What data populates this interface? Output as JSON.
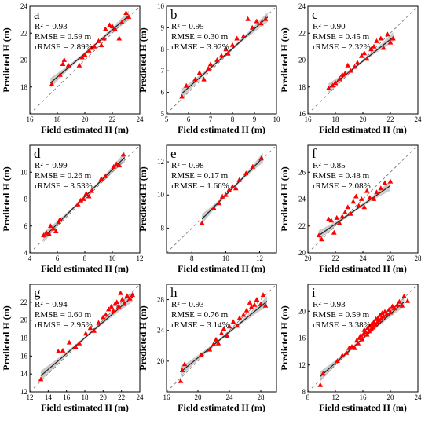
{
  "axis_labels": {
    "x": "Field estimated H (m)",
    "y": "Predicted H (m)"
  },
  "colors": {
    "points": "#ff0000",
    "band": "#b9b9b9",
    "fit": "#222222",
    "one_to_one": "#7a7a7a"
  },
  "chart_data": [
    {
      "type": "scatter",
      "panel": "a",
      "stats": {
        "r2": "R² = 0.93",
        "rmse": "RMSE = 0.59 m",
        "rrmse": "rRMSE = 2.89%"
      },
      "xlim": [
        16,
        24
      ],
      "ylim": [
        16,
        24
      ],
      "xticks": [
        "16",
        "18",
        "20",
        "22",
        "24"
      ],
      "yticks": [
        "18",
        "20",
        "22",
        "24"
      ],
      "xtick_values": [
        16,
        18,
        20,
        22,
        24
      ],
      "ytick_values": [
        18,
        20,
        22,
        24
      ],
      "fit": {
        "x": [
          17.5,
          23.2
        ],
        "y": [
          18.3,
          23.3
        ]
      },
      "points": [
        [
          17.6,
          18.2
        ],
        [
          18.2,
          18.9
        ],
        [
          18.4,
          19.7
        ],
        [
          18.5,
          20.0
        ],
        [
          18.8,
          19.6
        ],
        [
          19.6,
          19.6
        ],
        [
          19.8,
          20.2
        ],
        [
          20.0,
          20.4
        ],
        [
          20.3,
          20.7
        ],
        [
          20.5,
          20.9
        ],
        [
          20.7,
          21.0
        ],
        [
          21.0,
          21.4
        ],
        [
          21.2,
          21.1
        ],
        [
          21.4,
          21.6
        ],
        [
          21.5,
          22.3
        ],
        [
          21.8,
          22.6
        ],
        [
          22.0,
          22.5
        ],
        [
          22.2,
          22.3
        ],
        [
          22.5,
          21.6
        ],
        [
          22.7,
          22.8
        ],
        [
          23.0,
          23.5
        ],
        [
          23.2,
          23.2
        ]
      ]
    },
    {
      "type": "scatter",
      "panel": "b",
      "stats": {
        "r2": "R² = 0.95",
        "rmse": "RMSE = 0.30 m",
        "rrmse": "rRMSE = 3.92%"
      },
      "xlim": [
        5,
        10
      ],
      "ylim": [
        5,
        10
      ],
      "xticks": [
        "5",
        "6",
        "7",
        "8",
        "9",
        "10"
      ],
      "yticks": [
        "5",
        "6",
        "7",
        "8",
        "9",
        "10"
      ],
      "xtick_values": [
        5,
        6,
        7,
        8,
        9,
        10
      ],
      "ytick_values": [
        5,
        6,
        7,
        8,
        9,
        10
      ],
      "fit": {
        "x": [
          5.7,
          9.6
        ],
        "y": [
          5.95,
          9.5
        ]
      },
      "points": [
        [
          5.7,
          5.8
        ],
        [
          5.9,
          6.3
        ],
        [
          6.3,
          6.6
        ],
        [
          6.5,
          6.9
        ],
        [
          6.7,
          6.6
        ],
        [
          6.9,
          7.1
        ],
        [
          7.0,
          7.3
        ],
        [
          7.3,
          7.5
        ],
        [
          7.5,
          7.7
        ],
        [
          7.7,
          8.0
        ],
        [
          7.8,
          7.8
        ],
        [
          8.0,
          8.2
        ],
        [
          8.2,
          8.5
        ],
        [
          8.5,
          8.6
        ],
        [
          8.7,
          9.4
        ],
        [
          8.9,
          9.0
        ],
        [
          9.1,
          9.3
        ],
        [
          9.3,
          9.2
        ],
        [
          9.5,
          9.4
        ]
      ]
    },
    {
      "type": "scatter",
      "panel": "c",
      "stats": {
        "r2": "R² = 0.90",
        "rmse": "RMSE = 0.45 m",
        "rrmse": "rRMSE = 2.32%"
      },
      "xlim": [
        16,
        24
      ],
      "ylim": [
        16,
        24
      ],
      "xticks": [
        "16",
        "18",
        "20",
        "22",
        "24"
      ],
      "yticks": [
        "16",
        "18",
        "20",
        "22",
        "24"
      ],
      "xtick_values": [
        16,
        18,
        20,
        22,
        24
      ],
      "ytick_values": [
        16,
        18,
        20,
        22,
        24
      ],
      "fit": {
        "x": [
          17.5,
          22.2
        ],
        "y": [
          17.9,
          21.7
        ]
      },
      "points": [
        [
          17.5,
          17.9
        ],
        [
          17.8,
          18.1
        ],
        [
          18.0,
          18.3
        ],
        [
          18.3,
          18.6
        ],
        [
          18.5,
          18.9
        ],
        [
          18.7,
          19.0
        ],
        [
          18.9,
          19.6
        ],
        [
          19.1,
          19.2
        ],
        [
          19.4,
          19.5
        ],
        [
          19.6,
          19.8
        ],
        [
          19.9,
          20.3
        ],
        [
          20.1,
          20.5
        ],
        [
          20.3,
          20.1
        ],
        [
          20.6,
          20.8
        ],
        [
          20.8,
          21.0
        ],
        [
          21.0,
          21.4
        ],
        [
          21.3,
          21.6
        ],
        [
          21.5,
          20.9
        ],
        [
          21.8,
          21.9
        ],
        [
          22.0,
          21.3
        ],
        [
          22.2,
          21.6
        ]
      ]
    },
    {
      "type": "scatter",
      "panel": "d",
      "stats": {
        "r2": "R² = 0.99",
        "rmse": "RMSE = 0.26 m",
        "rrmse": "rRMSE = 3.53%"
      },
      "xlim": [
        4,
        12
      ],
      "ylim": [
        4,
        12
      ],
      "xticks": [
        "4",
        "6",
        "8",
        "10",
        "12"
      ],
      "yticks": [
        "4",
        "6",
        "8",
        "10"
      ],
      "xtick_values": [
        4,
        6,
        8,
        10,
        12
      ],
      "ytick_values": [
        4,
        6,
        8,
        10
      ],
      "fit": {
        "x": [
          5.0,
          10.9
        ],
        "y": [
          5.15,
          11.1
        ]
      },
      "points": [
        [
          5.0,
          5.3
        ],
        [
          5.2,
          5.5
        ],
        [
          5.4,
          5.4
        ],
        [
          5.5,
          6.0
        ],
        [
          5.7,
          5.8
        ],
        [
          5.9,
          5.6
        ],
        [
          6.1,
          6.3
        ],
        [
          6.2,
          6.5
        ],
        [
          7.5,
          7.6
        ],
        [
          7.7,
          7.9
        ],
        [
          7.9,
          8.0
        ],
        [
          8.1,
          8.4
        ],
        [
          8.3,
          8.2
        ],
        [
          8.5,
          8.6
        ],
        [
          9.2,
          9.5
        ],
        [
          9.5,
          9.7
        ],
        [
          10.1,
          10.4
        ],
        [
          10.3,
          10.6
        ],
        [
          10.5,
          10.5
        ],
        [
          10.8,
          11.3
        ]
      ]
    },
    {
      "type": "scatter",
      "panel": "e",
      "stats": {
        "r2": "R² = 0.98",
        "rmse": "RMSE = 0.17 m",
        "rrmse": "rRMSE = 1.66%"
      },
      "xlim": [
        6.5,
        13
      ],
      "ylim": [
        6.5,
        13
      ],
      "xticks": [
        "8",
        "10",
        "12"
      ],
      "yticks": [
        "8",
        "10",
        "12"
      ],
      "xtick_values": [
        8,
        10,
        12
      ],
      "ytick_values": [
        8,
        10,
        12
      ],
      "fit": {
        "x": [
          8.6,
          12.2
        ],
        "y": [
          8.55,
          12.25
        ]
      },
      "points": [
        [
          8.6,
          8.3
        ],
        [
          9.3,
          9.2
        ],
        [
          9.6,
          9.5
        ],
        [
          9.8,
          9.9
        ],
        [
          10.0,
          10.0
        ],
        [
          10.2,
          10.3
        ],
        [
          10.4,
          10.5
        ],
        [
          10.6,
          10.4
        ],
        [
          10.8,
          10.9
        ],
        [
          11.2,
          11.3
        ],
        [
          11.6,
          11.7
        ],
        [
          12.1,
          12.2
        ]
      ]
    },
    {
      "type": "scatter",
      "panel": "f",
      "stats": {
        "r2": "R² = 0.85",
        "rmse": "RMSE = 0.48 m",
        "rrmse": "rRMSE = 2.08%"
      },
      "xlim": [
        20,
        28
      ],
      "ylim": [
        20,
        28
      ],
      "xticks": [
        "20",
        "22",
        "24",
        "26",
        "28"
      ],
      "yticks": [
        "20",
        "22",
        "24",
        "26"
      ],
      "xtick_values": [
        20,
        22,
        24,
        26,
        28
      ],
      "ytick_values": [
        20,
        22,
        24,
        26
      ],
      "fit": {
        "x": [
          20.8,
          26.0
        ],
        "y": [
          21.3,
          25.0
        ]
      },
      "points": [
        [
          20.8,
          21.3
        ],
        [
          21.0,
          21.0
        ],
        [
          21.5,
          22.5
        ],
        [
          21.7,
          22.4
        ],
        [
          21.9,
          21.5
        ],
        [
          22.1,
          22.6
        ],
        [
          22.3,
          22.2
        ],
        [
          22.5,
          22.7
        ],
        [
          22.7,
          23.0
        ],
        [
          22.9,
          23.4
        ],
        [
          23.1,
          22.9
        ],
        [
          23.3,
          23.8
        ],
        [
          23.5,
          24.2
        ],
        [
          23.7,
          23.5
        ],
        [
          23.9,
          24.0
        ],
        [
          24.1,
          23.4
        ],
        [
          24.3,
          24.6
        ],
        [
          24.5,
          24.1
        ],
        [
          24.8,
          24.0
        ],
        [
          25.0,
          24.5
        ],
        [
          25.3,
          24.8
        ],
        [
          25.6,
          25.2
        ],
        [
          26.0,
          25.3
        ]
      ]
    },
    {
      "type": "scatter",
      "panel": "g",
      "stats": {
        "r2": "R² = 0.94",
        "rmse": "RMSE = 0.60 m",
        "rrmse": "rRMSE = 2.95%"
      },
      "xlim": [
        12,
        24
      ],
      "ylim": [
        12,
        24
      ],
      "xticks": [
        "12",
        "14",
        "16",
        "18",
        "20",
        "22",
        "24"
      ],
      "yticks": [
        "12",
        "14",
        "16",
        "18",
        "20",
        "22"
      ],
      "xtick_values": [
        12,
        14,
        16,
        18,
        20,
        22,
        24
      ],
      "ytick_values": [
        12,
        14,
        16,
        18,
        20,
        22
      ],
      "fit": {
        "x": [
          13.2,
          23.2
        ],
        "y": [
          13.8,
          22.6
        ]
      },
      "points": [
        [
          13.2,
          13.4
        ],
        [
          15.1,
          16.5
        ],
        [
          15.6,
          16.6
        ],
        [
          16.3,
          17.5
        ],
        [
          17.0,
          17.0
        ],
        [
          17.4,
          17.4
        ],
        [
          18.1,
          18.5
        ],
        [
          18.6,
          19.1
        ],
        [
          19.0,
          18.8
        ],
        [
          19.5,
          19.7
        ],
        [
          20.0,
          20.3
        ],
        [
          20.3,
          20.6
        ],
        [
          20.6,
          21.2
        ],
        [
          20.9,
          21.5
        ],
        [
          21.1,
          21.0
        ],
        [
          21.3,
          21.8
        ],
        [
          21.5,
          22.0
        ],
        [
          21.7,
          21.5
        ],
        [
          21.9,
          23.0
        ],
        [
          22.1,
          22.3
        ],
        [
          22.3,
          21.8
        ],
        [
          22.6,
          22.7
        ],
        [
          22.9,
          22.4
        ],
        [
          23.2,
          22.8
        ]
      ]
    },
    {
      "type": "scatter",
      "panel": "h",
      "stats": {
        "r2": "R² = 0.93",
        "rmse": "RMSE = 0.76 m",
        "rrmse": "rRMSE = 3.14%"
      },
      "xlim": [
        16,
        30
      ],
      "ylim": [
        16,
        30
      ],
      "xticks": [
        "16",
        "20",
        "24",
        "28"
      ],
      "yticks": [
        "20",
        "24",
        "28"
      ],
      "xtick_values": [
        16,
        20,
        24,
        28
      ],
      "ytick_values": [
        20,
        24,
        28
      ],
      "fit": {
        "x": [
          17.8,
          28.8
        ],
        "y": [
          18.6,
          27.8
        ]
      },
      "points": [
        [
          17.8,
          17.4
        ],
        [
          18.0,
          18.8
        ],
        [
          18.3,
          19.6
        ],
        [
          20.4,
          20.8
        ],
        [
          21.5,
          21.5
        ],
        [
          22.0,
          22.2
        ],
        [
          22.3,
          22.8
        ],
        [
          22.6,
          22.3
        ],
        [
          23.0,
          23.6
        ],
        [
          23.3,
          24.2
        ],
        [
          23.7,
          23.3
        ],
        [
          24.0,
          24.5
        ],
        [
          24.5,
          25.1
        ],
        [
          25.0,
          24.6
        ],
        [
          25.3,
          25.6
        ],
        [
          25.8,
          26.0
        ],
        [
          26.2,
          26.6
        ],
        [
          26.6,
          27.6
        ],
        [
          26.8,
          27.0
        ],
        [
          27.2,
          27.3
        ],
        [
          27.5,
          28.0
        ],
        [
          28.0,
          27.4
        ],
        [
          28.3,
          28.6
        ],
        [
          28.6,
          27.2
        ]
      ]
    },
    {
      "type": "scatter",
      "panel": "i",
      "stats": {
        "r2": "R² = 0.93",
        "rmse": "RMSE = 0.59 m",
        "rrmse": "rRMSE = 3.38%"
      },
      "xlim": [
        8,
        24
      ],
      "ylim": [
        8,
        24
      ],
      "xticks": [
        "8",
        "12",
        "16",
        "20",
        "24"
      ],
      "yticks": [
        "8",
        "12",
        "16",
        "20"
      ],
      "xtick_values": [
        8,
        12,
        16,
        20,
        24
      ],
      "ytick_values": [
        8,
        12,
        16,
        20
      ],
      "fit": {
        "x": [
          9.8,
          22.0
        ],
        "y": [
          10.3,
          21.4
        ]
      },
      "points": [
        [
          9.8,
          9.0
        ],
        [
          10.2,
          10.7
        ],
        [
          12.3,
          12.6
        ],
        [
          13.0,
          13.4
        ],
        [
          13.6,
          13.8
        ],
        [
          14.0,
          14.5
        ],
        [
          14.4,
          14.7
        ],
        [
          14.8,
          14.5
        ],
        [
          15.1,
          15.6
        ],
        [
          15.3,
          15.2
        ],
        [
          15.5,
          16.0
        ],
        [
          15.7,
          16.4
        ],
        [
          15.9,
          15.8
        ],
        [
          16.1,
          16.6
        ],
        [
          16.2,
          17.2
        ],
        [
          16.4,
          16.9
        ],
        [
          16.6,
          16.5
        ],
        [
          16.7,
          17.5
        ],
        [
          16.9,
          17.0
        ],
        [
          17.0,
          17.8
        ],
        [
          17.2,
          17.3
        ],
        [
          17.3,
          18.1
        ],
        [
          17.5,
          17.6
        ],
        [
          17.6,
          18.4
        ],
        [
          17.8,
          18.0
        ],
        [
          17.9,
          18.8
        ],
        [
          18.1,
          18.3
        ],
        [
          18.2,
          19.0
        ],
        [
          18.4,
          18.6
        ],
        [
          18.5,
          19.4
        ],
        [
          18.7,
          18.9
        ],
        [
          18.8,
          19.7
        ],
        [
          19.0,
          19.2
        ],
        [
          19.2,
          19.9
        ],
        [
          19.5,
          19.6
        ],
        [
          19.8,
          20.2
        ],
        [
          20.0,
          19.8
        ],
        [
          20.3,
          20.7
        ],
        [
          20.6,
          20.4
        ],
        [
          21.0,
          20.9
        ],
        [
          21.3,
          21.4
        ],
        [
          21.7,
          20.8
        ],
        [
          22.0,
          22.2
        ],
        [
          22.5,
          21.5
        ]
      ]
    }
  ]
}
